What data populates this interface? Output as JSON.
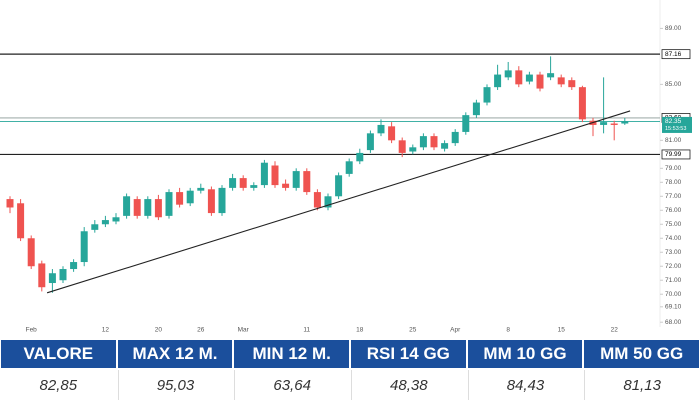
{
  "chart_data": {
    "type": "candlestick",
    "categories": [
      null,
      null,
      "Feb",
      null,
      null,
      null,
      null,
      null,
      null,
      "12",
      null,
      null,
      null,
      null,
      "20",
      null,
      null,
      null,
      "26",
      null,
      null,
      null,
      "Mar",
      null,
      null,
      null,
      null,
      null,
      "11",
      null,
      null,
      null,
      null,
      "18",
      null,
      null,
      null,
      null,
      "25",
      null,
      null,
      null,
      "Apr",
      null,
      null,
      null,
      null,
      "8",
      null,
      null,
      null,
      null,
      "15",
      null,
      null,
      null,
      null,
      "22",
      null
    ],
    "open": [
      76.8,
      76.5,
      74.0,
      72.2,
      70.8,
      71.0,
      71.8,
      72.3,
      74.6,
      75.0,
      75.2,
      75.6,
      76.8,
      75.6,
      76.8,
      75.6,
      77.3,
      76.5,
      77.4,
      77.5,
      75.8,
      77.6,
      78.3,
      77.6,
      77.8,
      79.2,
      77.9,
      77.6,
      78.8,
      77.3,
      76.2,
      77.0,
      78.6,
      79.5,
      80.3,
      81.5,
      82.0,
      81.0,
      80.2,
      80.5,
      81.3,
      80.4,
      80.8,
      81.6,
      82.8,
      83.7,
      84.8,
      85.5,
      86.0,
      85.2,
      85.7,
      85.5,
      85.5,
      85.3,
      84.8,
      82.4,
      82.1,
      82.2,
      82.2
    ],
    "high": [
      77.0,
      76.8,
      74.2,
      72.4,
      71.8,
      72.0,
      72.5,
      74.8,
      75.3,
      75.6,
      75.8,
      77.2,
      77.0,
      77.0,
      77.1,
      77.5,
      77.6,
      77.6,
      77.9,
      77.7,
      77.8,
      78.6,
      78.5,
      78.0,
      79.6,
      79.5,
      78.2,
      79.0,
      79.0,
      77.5,
      77.2,
      78.7,
      79.7,
      80.4,
      81.7,
      82.5,
      82.3,
      81.2,
      80.7,
      81.5,
      81.5,
      81.0,
      81.8,
      83.0,
      83.9,
      85.0,
      86.4,
      86.6,
      86.3,
      85.9,
      85.9,
      87.0,
      85.7,
      85.5,
      84.9,
      82.6,
      85.5,
      82.4,
      82.6
    ],
    "low": [
      75.8,
      73.8,
      71.8,
      70.2,
      70.1,
      70.8,
      71.6,
      72.0,
      74.4,
      74.8,
      75.0,
      75.4,
      75.4,
      75.4,
      75.3,
      75.4,
      76.2,
      76.3,
      77.2,
      75.6,
      75.6,
      77.4,
      77.4,
      77.4,
      77.6,
      77.6,
      77.4,
      77.4,
      77.1,
      76.0,
      76.0,
      76.8,
      78.4,
      79.3,
      80.1,
      81.3,
      80.8,
      79.8,
      80.0,
      80.3,
      80.3,
      80.2,
      80.6,
      81.4,
      82.6,
      83.5,
      84.6,
      85.3,
      84.8,
      85.0,
      84.5,
      85.3,
      84.8,
      84.6,
      82.3,
      81.3,
      81.5,
      81.0,
      82.1
    ],
    "close": [
      76.2,
      74.0,
      72.0,
      70.5,
      71.5,
      71.8,
      72.3,
      74.5,
      75.0,
      75.3,
      75.5,
      77.0,
      75.6,
      76.8,
      75.5,
      77.3,
      76.4,
      77.4,
      77.6,
      75.8,
      77.6,
      78.3,
      77.6,
      77.8,
      79.4,
      77.8,
      77.6,
      78.8,
      77.3,
      76.2,
      77.0,
      78.5,
      79.5,
      80.1,
      81.5,
      82.1,
      81.0,
      80.1,
      80.5,
      81.3,
      80.5,
      80.8,
      81.6,
      82.8,
      83.7,
      84.8,
      85.7,
      86.0,
      85.0,
      85.7,
      84.7,
      85.8,
      85.0,
      84.8,
      82.5,
      82.1,
      82.3,
      82.1,
      82.35
    ],
    "up_color": "#26a69a",
    "down_color": "#ef5350",
    "ylim": [
      67.8,
      89.6
    ],
    "yticks": [
      {
        "value": 89,
        "label": "89.00"
      },
      {
        "value": 85,
        "label": "85.00"
      },
      {
        "value": 81,
        "label": "81.00"
      },
      {
        "value": 79,
        "label": "79.00"
      },
      {
        "value": 78,
        "label": "78.00"
      },
      {
        "value": 77,
        "label": "77.00"
      },
      {
        "value": 76,
        "label": "76.00"
      },
      {
        "value": 75,
        "label": "75.00"
      },
      {
        "value": 74,
        "label": "74.00"
      },
      {
        "value": 73,
        "label": "73.00"
      },
      {
        "value": 72,
        "label": "72.00"
      },
      {
        "value": 71,
        "label": "71.00"
      },
      {
        "value": 70,
        "label": "70.00"
      },
      {
        "value": 69.1,
        "label": "69.10"
      },
      {
        "value": 68,
        "label": "68.00"
      }
    ],
    "levels": [
      {
        "value": 87.16,
        "label": "87.16"
      },
      {
        "value": 79.99,
        "label": "79.99"
      }
    ],
    "price_lines": [
      {
        "value": 82.6,
        "label": "82.60"
      },
      {
        "value": 82.35,
        "label": "82.35",
        "time": "15:53:53"
      }
    ],
    "trendline": {
      "x": [
        3.5,
        58.5
      ],
      "y": [
        70.1,
        83.1
      ]
    }
  },
  "table": {
    "headers": [
      "VALORE",
      "MAX 12 M.",
      "MIN 12 M.",
      "RSI 14 GG",
      "MM 10 GG",
      "MM 50 GG"
    ],
    "values": [
      "82,85",
      "95,03",
      "63,64",
      "48,38",
      "84,43",
      "81,13"
    ]
  }
}
